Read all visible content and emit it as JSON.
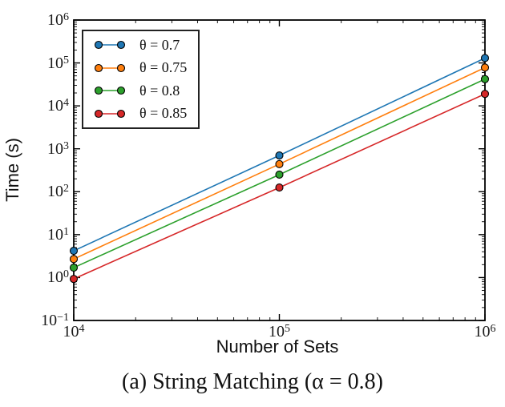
{
  "figure": {
    "background_color": "#ffffff",
    "axis_color": "#000000"
  },
  "chart_data": {
    "type": "line",
    "title": "",
    "caption": "(a) String Matching (α = 0.8)",
    "xlabel": "Number of Sets",
    "ylabel": "Time (s)",
    "x_scale": "log",
    "y_scale": "log",
    "xlim": [
      10000,
      1000000
    ],
    "ylim": [
      0.1,
      1000000
    ],
    "grid": false,
    "legend_position": "upper-left",
    "marker": "circle",
    "x": [
      10000,
      100000,
      1000000
    ],
    "x_tick_labels": [
      "10^4",
      "10^5",
      "10^6"
    ],
    "y_tick_labels": [
      "10^6",
      "10^5",
      "10^4",
      "10^3",
      "10^2",
      "10^1",
      "10^0",
      "10^-1"
    ],
    "series": [
      {
        "name": "θ = 0.7",
        "color": "#1f77b4",
        "values": [
          4.2,
          700,
          130000
        ]
      },
      {
        "name": "θ = 0.75",
        "color": "#ff7f0e",
        "values": [
          2.7,
          440,
          78000
        ]
      },
      {
        "name": "θ = 0.8",
        "color": "#2ca02c",
        "values": [
          1.7,
          250,
          42000
        ]
      },
      {
        "name": "θ = 0.85",
        "color": "#d62728",
        "values": [
          0.93,
          125,
          19000
        ]
      }
    ]
  }
}
